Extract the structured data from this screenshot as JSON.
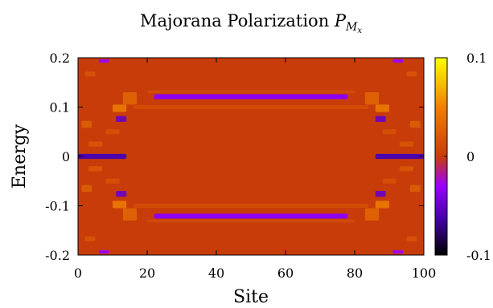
{
  "chart_data": {
    "type": "heatmap",
    "title": {
      "text": "Majorana Polarization ",
      "symbol": "P",
      "subscript": "M",
      "subsubscript": "x"
    },
    "xlabel": "Site",
    "ylabel": "Energy",
    "xlim": [
      0,
      100
    ],
    "ylim": [
      -0.2,
      0.2
    ],
    "xticks": [
      0,
      20,
      40,
      60,
      80,
      100
    ],
    "xtick_labels": [
      "0",
      "20",
      "40",
      "60",
      "80",
      "100"
    ],
    "yticks": [
      -0.2,
      -0.1,
      0,
      0.1,
      0.2
    ],
    "ytick_labels": [
      "-0.2",
      "-0.1",
      "0",
      "0.1",
      "0.2"
    ],
    "colorbar": {
      "range": [
        -0.1,
        0.1
      ],
      "ticks": [
        -0.1,
        0,
        0.1
      ],
      "tick_labels": [
        "-0.1",
        "0",
        "0.1"
      ],
      "colormap": "black-purple-red-yellow",
      "stops": [
        {
          "value": -0.1,
          "color": "#000000"
        },
        {
          "value": -0.065,
          "color": "#4000a0"
        },
        {
          "value": -0.03,
          "color": "#9a00ff"
        },
        {
          "value": 0.0,
          "color": "#c83c0a"
        },
        {
          "value": 0.05,
          "color": "#f08000"
        },
        {
          "value": 0.1,
          "color": "#ffff00"
        }
      ]
    },
    "background_value": 0.0,
    "features": [
      {
        "kind": "band",
        "x": [
          0,
          14
        ],
        "y": [
          -0.005,
          0.005
        ],
        "value": -0.06
      },
      {
        "kind": "band",
        "x": [
          86,
          100
        ],
        "y": [
          -0.005,
          0.005
        ],
        "value": -0.06
      },
      {
        "kind": "band",
        "x": [
          22,
          78
        ],
        "y": [
          0.116,
          0.126
        ],
        "value": -0.035
      },
      {
        "kind": "band",
        "x": [
          22,
          78
        ],
        "y": [
          -0.126,
          -0.116
        ],
        "value": -0.035
      },
      {
        "kind": "band",
        "x": [
          16,
          84
        ],
        "y": [
          0.096,
          0.104
        ],
        "value": 0.012
      },
      {
        "kind": "band",
        "x": [
          16,
          84
        ],
        "y": [
          -0.104,
          -0.096
        ],
        "value": 0.012
      },
      {
        "kind": "band",
        "x": [
          20,
          80
        ],
        "y": [
          0.128,
          0.134
        ],
        "value": 0.01
      },
      {
        "kind": "band",
        "x": [
          20,
          80
        ],
        "y": [
          -0.134,
          -0.128
        ],
        "value": 0.01
      },
      {
        "kind": "spot",
        "x": [
          11,
          14
        ],
        "y": [
          0.07,
          0.082
        ],
        "value": -0.05
      },
      {
        "kind": "spot",
        "x": [
          11,
          14
        ],
        "y": [
          -0.082,
          -0.07
        ],
        "value": -0.05
      },
      {
        "kind": "spot",
        "x": [
          86,
          89
        ],
        "y": [
          0.07,
          0.082
        ],
        "value": -0.05
      },
      {
        "kind": "spot",
        "x": [
          86,
          89
        ],
        "y": [
          -0.082,
          -0.07
        ],
        "value": -0.05
      },
      {
        "kind": "spot",
        "x": [
          10,
          14
        ],
        "y": [
          0.09,
          0.105
        ],
        "value": 0.045
      },
      {
        "kind": "spot",
        "x": [
          10,
          14
        ],
        "y": [
          -0.105,
          -0.09
        ],
        "value": 0.045
      },
      {
        "kind": "spot",
        "x": [
          86,
          90
        ],
        "y": [
          0.09,
          0.105
        ],
        "value": 0.045
      },
      {
        "kind": "spot",
        "x": [
          86,
          90
        ],
        "y": [
          -0.105,
          -0.09
        ],
        "value": 0.045
      },
      {
        "kind": "spot",
        "x": [
          13,
          17
        ],
        "y": [
          0.105,
          0.13
        ],
        "value": 0.03
      },
      {
        "kind": "spot",
        "x": [
          13,
          17
        ],
        "y": [
          -0.13,
          -0.105
        ],
        "value": 0.03
      },
      {
        "kind": "spot",
        "x": [
          83,
          87
        ],
        "y": [
          0.105,
          0.13
        ],
        "value": 0.03
      },
      {
        "kind": "spot",
        "x": [
          83,
          87
        ],
        "y": [
          -0.13,
          -0.105
        ],
        "value": 0.03
      },
      {
        "kind": "spot",
        "x": [
          1,
          4
        ],
        "y": [
          0.058,
          0.072
        ],
        "value": 0.025
      },
      {
        "kind": "spot",
        "x": [
          1,
          4
        ],
        "y": [
          -0.072,
          -0.058
        ],
        "value": 0.025
      },
      {
        "kind": "spot",
        "x": [
          96,
          99
        ],
        "y": [
          0.058,
          0.072
        ],
        "value": 0.025
      },
      {
        "kind": "spot",
        "x": [
          96,
          99
        ],
        "y": [
          -0.072,
          -0.058
        ],
        "value": 0.025
      },
      {
        "kind": "spot",
        "x": [
          3,
          7
        ],
        "y": [
          0.02,
          0.03
        ],
        "value": 0.02
      },
      {
        "kind": "spot",
        "x": [
          3,
          7
        ],
        "y": [
          -0.03,
          -0.02
        ],
        "value": 0.02
      },
      {
        "kind": "spot",
        "x": [
          93,
          97
        ],
        "y": [
          0.02,
          0.03
        ],
        "value": 0.02
      },
      {
        "kind": "spot",
        "x": [
          93,
          97
        ],
        "y": [
          -0.03,
          -0.02
        ],
        "value": 0.02
      },
      {
        "kind": "spot",
        "x": [
          2,
          5
        ],
        "y": [
          0.162,
          0.172
        ],
        "value": 0.018
      },
      {
        "kind": "spot",
        "x": [
          2,
          5
        ],
        "y": [
          -0.172,
          -0.162
        ],
        "value": 0.018
      },
      {
        "kind": "spot",
        "x": [
          95,
          98
        ],
        "y": [
          0.162,
          0.172
        ],
        "value": 0.018
      },
      {
        "kind": "spot",
        "x": [
          95,
          98
        ],
        "y": [
          -0.172,
          -0.162
        ],
        "value": 0.018
      },
      {
        "kind": "spot",
        "x": [
          6,
          9
        ],
        "y": [
          -0.197,
          -0.19
        ],
        "value": -0.03
      },
      {
        "kind": "spot",
        "x": [
          91,
          94
        ],
        "y": [
          -0.197,
          -0.19
        ],
        "value": -0.03
      },
      {
        "kind": "spot",
        "x": [
          6,
          9
        ],
        "y": [
          0.19,
          0.197
        ],
        "value": -0.03
      },
      {
        "kind": "spot",
        "x": [
          91,
          94
        ],
        "y": [
          0.19,
          0.197
        ],
        "value": -0.03
      },
      {
        "kind": "spot",
        "x": [
          8,
          12
        ],
        "y": [
          0.045,
          0.055
        ],
        "value": 0.015
      },
      {
        "kind": "spot",
        "x": [
          8,
          12
        ],
        "y": [
          -0.055,
          -0.045
        ],
        "value": 0.015
      },
      {
        "kind": "spot",
        "x": [
          88,
          92
        ],
        "y": [
          0.045,
          0.055
        ],
        "value": 0.015
      },
      {
        "kind": "spot",
        "x": [
          88,
          92
        ],
        "y": [
          -0.055,
          -0.045
        ],
        "value": 0.015
      }
    ]
  }
}
